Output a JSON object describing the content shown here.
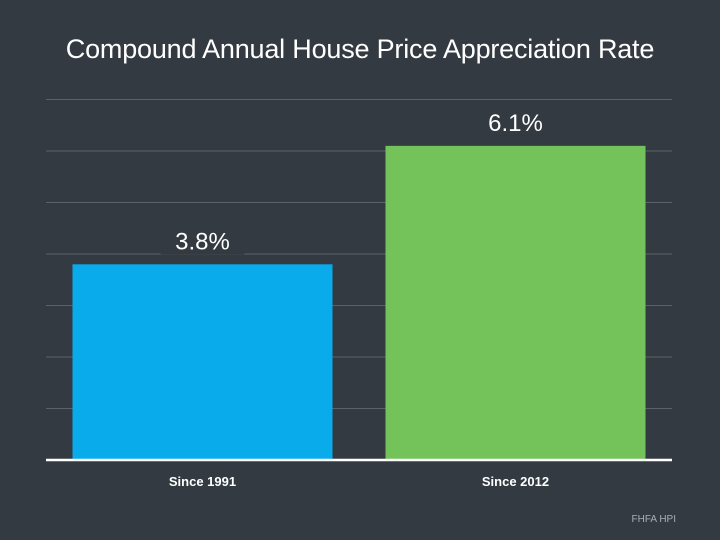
{
  "title": "Compound Annual House Price Appreciation Rate",
  "source": "FHFA HPI",
  "chart_data": {
    "type": "bar",
    "title": "Compound Annual House Price Appreciation Rate",
    "categories": [
      "Since 1991",
      "Since 2012"
    ],
    "values": [
      3.8,
      6.1
    ],
    "data_labels": [
      "3.8%",
      "6.1%"
    ],
    "colors": [
      "#0aabeb",
      "#73c35a"
    ],
    "xlabel": "",
    "ylabel": "",
    "ylim": [
      0,
      7
    ],
    "gridlines": true,
    "grid_step": 1
  }
}
